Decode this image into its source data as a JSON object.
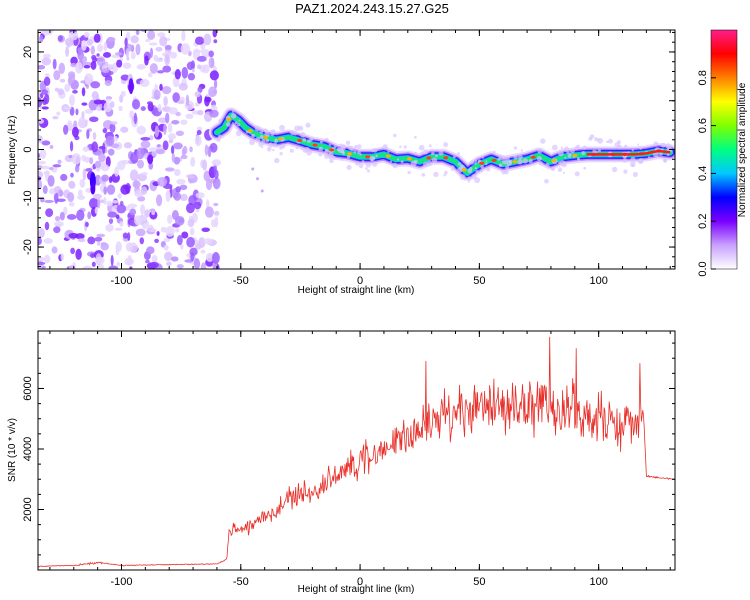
{
  "title": "PAZ1.2024.243.15.27.G25",
  "chart_data": [
    {
      "type": "heatmap",
      "xlabel": "Height of straight line (km)",
      "ylabel": "Frequency (Hz)",
      "xlim": [
        -135,
        132
      ],
      "ylim": [
        -24.5,
        24.5
      ],
      "xticks": [
        -100,
        -50,
        0,
        50,
        100
      ],
      "yticks": [
        -20,
        -10,
        0,
        10,
        20
      ],
      "colorbar": {
        "label": "Normalized spectral amplitude",
        "ticks": [
          "0.0",
          "0.2",
          "0.4",
          "0.6",
          "0.8"
        ],
        "range": [
          0,
          1
        ],
        "colormap": [
          "#ffffff",
          "#c8a0ff",
          "#7a00ff",
          "#0000ff",
          "#00c8ff",
          "#00ff80",
          "#80ff00",
          "#ffff00",
          "#ff8000",
          "#ff0000",
          "#ff1e8c"
        ]
      },
      "noise_region_x": [
        -135,
        -60
      ],
      "ridge": {
        "x": [
          -60,
          -57,
          -54,
          -51,
          -48,
          -45,
          -40,
          -35,
          -30,
          -25,
          -20,
          -15,
          -10,
          -5,
          0,
          5,
          10,
          15,
          20,
          25,
          30,
          35,
          40,
          45,
          50,
          55,
          60,
          65,
          70,
          75,
          80,
          85,
          90,
          95,
          100,
          105,
          110,
          115,
          120,
          125,
          130
        ],
        "y": [
          3.5,
          4.5,
          7.0,
          6.0,
          4.5,
          3.5,
          2.5,
          2.0,
          2.5,
          1.8,
          1.0,
          0.6,
          -0.5,
          -0.8,
          -1.5,
          -1.5,
          -1.0,
          -2.0,
          -1.8,
          -2.5,
          -1.5,
          -1.5,
          -2.5,
          -4.8,
          -3.0,
          -2.0,
          -3.0,
          -2.5,
          -2.0,
          -1.2,
          -2.5,
          -1.5,
          -1.2,
          -1.0,
          -1.0,
          -1.0,
          -1.0,
          -1.0,
          -0.8,
          -0.3,
          -0.6
        ]
      }
    },
    {
      "type": "line",
      "xlabel": "Height of straight line (km)",
      "ylabel": "SNR (10 * v/v)",
      "xlim": [
        -135,
        132
      ],
      "ylim": [
        0,
        7900
      ],
      "xticks": [
        -100,
        -50,
        0,
        50,
        100
      ],
      "yticks": [
        2000,
        4000,
        6000
      ],
      "color": "#e8302a",
      "series": [
        {
          "x": [
            -135,
            -120,
            -110,
            -100,
            -80,
            -60,
            -56,
            -55,
            -50,
            -45,
            -40,
            -35,
            -30,
            -25,
            -20,
            -15,
            -10,
            -5,
            0,
            5,
            10,
            15,
            20,
            25,
            30,
            35,
            40,
            45,
            50,
            55,
            60,
            65,
            70,
            75,
            80,
            85,
            90,
            95,
            100,
            105,
            110,
            115,
            119,
            120,
            125,
            132
          ],
          "y": [
            120,
            150,
            250,
            150,
            180,
            200,
            350,
            1300,
            1400,
            1500,
            1800,
            2000,
            2300,
            2500,
            2600,
            2800,
            3000,
            3300,
            3600,
            3800,
            4000,
            4200,
            4400,
            4600,
            4800,
            5100,
            5300,
            5300,
            5400,
            5400,
            5300,
            5400,
            5400,
            5400,
            5300,
            5200,
            5100,
            5000,
            5000,
            4900,
            4900,
            4900,
            4900,
            3100,
            3050,
            3000
          ]
        }
      ]
    }
  ]
}
